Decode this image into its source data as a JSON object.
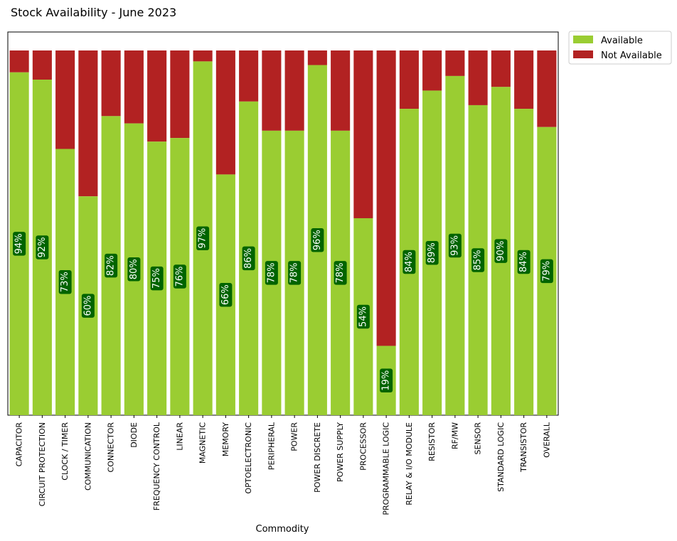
{
  "chart_data": {
    "type": "bar",
    "stacked": true,
    "normalized_to_percent": true,
    "title": "Stock Availability - June 2023",
    "xlabel": "Commodity",
    "ylabel": "",
    "ylim": [
      0,
      100
    ],
    "y_axis_visible": false,
    "grid": false,
    "legend_position": "outside-top-right",
    "categories": [
      "CAPACITOR",
      "CIRCUIT PROTECTION",
      "CLOCK / TIMER",
      "COMMUNICATION",
      "CONNECTOR",
      "DIODE",
      "FREQUENCY CONTROL",
      "LINEAR",
      "MAGNETIC",
      "MEMORY",
      "OPTOELECTRONIC",
      "PERIPHERAL",
      "POWER",
      "POWER DISCRETE",
      "POWER SUPPLY",
      "PROCESSOR",
      "PROGRAMMABLE LOGIC",
      "RELAY & I/O MODULE",
      "RESISTOR",
      "RF/MW",
      "SENSOR",
      "STANDARD LOGIC",
      "TRANSISTOR",
      "OVERALL"
    ],
    "series": [
      {
        "name": "Available",
        "color": "#9acd32",
        "values": [
          94,
          92,
          73,
          60,
          82,
          80,
          75,
          76,
          97,
          66,
          86,
          78,
          78,
          96,
          78,
          54,
          19,
          84,
          89,
          93,
          85,
          90,
          84,
          79
        ]
      },
      {
        "name": "Not Available",
        "color": "#b22222",
        "values": [
          6,
          8,
          27,
          40,
          18,
          20,
          25,
          24,
          3,
          34,
          14,
          22,
          22,
          4,
          22,
          46,
          81,
          16,
          11,
          7,
          15,
          10,
          16,
          21
        ]
      }
    ],
    "data_labels": [
      "94%",
      "92%",
      "73%",
      "60%",
      "82%",
      "80%",
      "75%",
      "76%",
      "97%",
      "66%",
      "86%",
      "78%",
      "78%",
      "96%",
      "78%",
      "54%",
      "19%",
      "84%",
      "89%",
      "93%",
      "85%",
      "90%",
      "84%",
      "79%"
    ],
    "data_label_color": "#ffffff",
    "data_label_box_color": "#006400"
  }
}
